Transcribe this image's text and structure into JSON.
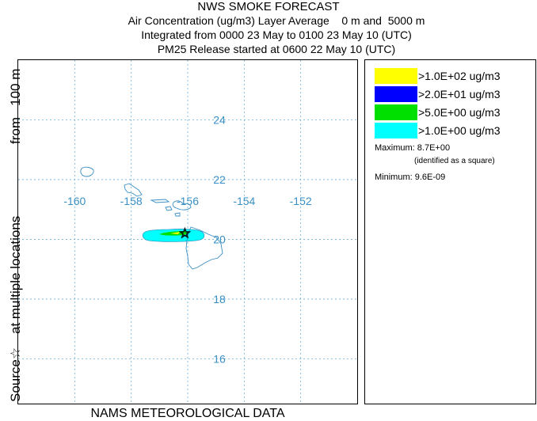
{
  "titles": [
    "NWS SMOKE FORECAST",
    "Air Concentration (ug/m3) Layer Average    0 m and  5000 m",
    "Integrated from 0000 23 May to 0100 23 May 10 (UTC)",
    "PM25 Release started at 0600 22 May 10 (UTC)"
  ],
  "side_labels": {
    "from": "from   100 m",
    "multiple": "at multiple locations",
    "source": "Source☆"
  },
  "footer": "NAMS METEOROLOGICAL DATA",
  "map": {
    "longitudes": [
      -160,
      -158,
      -156,
      -154,
      -152
    ],
    "longitude_labels": [
      "-160",
      "-158",
      "-156",
      "-154",
      "-152"
    ],
    "latitudes": [
      24,
      22,
      20,
      18,
      16
    ],
    "latitude_labels": [
      "24",
      "22",
      "20",
      "18",
      "16"
    ],
    "lon_range": [
      -162,
      -150
    ],
    "lat_range": [
      14.5,
      26
    ],
    "grid": true,
    "grid_color": "#6aaed6",
    "coast_color": "#3a8fc4",
    "source_location": {
      "lon": -156.1,
      "lat": 20.2
    }
  },
  "legend": {
    "items": [
      {
        "color": "#ffff00",
        "label": ">1.0E+02 ug/m3"
      },
      {
        "color": "#0000ff",
        "label": ">2.0E+01 ug/m3"
      },
      {
        "color": "#00e000",
        "label": ">5.0E+00 ug/m3"
      },
      {
        "color": "#00ffff",
        "label": ">1.0E+00 ug/m3"
      }
    ],
    "maximum": "Maximum: 8.7E+00",
    "identified": "(identified as a square)",
    "minimum": "Minimum: 9.6E-09"
  }
}
